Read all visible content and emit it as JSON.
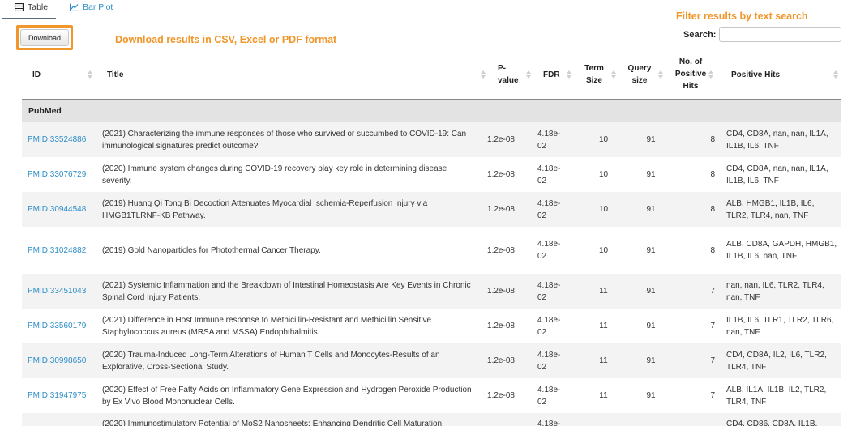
{
  "tabs": {
    "table_label": "Table",
    "bar_plot_label": "Bar Plot"
  },
  "download": {
    "button_label": "Download",
    "annotation": "Download results in CSV, Excel or PDF format"
  },
  "filter": {
    "annotation": "Filter results by text search",
    "search_label": "Search:",
    "search_value": "",
    "search_placeholder": ""
  },
  "columns": {
    "id": "ID",
    "title": "Title",
    "pvalue": "P-value",
    "fdr": "FDR",
    "term_size": "Term Size",
    "query_size": "Query size",
    "num_positive_hits": "No. of Positive Hits",
    "positive_hits": "Positive Hits"
  },
  "group_label": "PubMed",
  "rows": [
    {
      "id": "PMID:33524886",
      "title": "(2021) Characterizing the immune responses of those who survived or succumbed to COVID-19: Can immunological signatures predict outcome?",
      "pvalue": "1.2e-08",
      "fdr": "4.18e-02",
      "term_size": "10",
      "query_size": "91",
      "num_positive_hits": "8",
      "positive_hits": "CD4, CD8A, nan, nan, IL1A, IL1B, IL6, TNF"
    },
    {
      "id": "PMID:33076729",
      "title": "(2020) Immune system changes during COVID-19 recovery play key role in determining disease severity.",
      "pvalue": "1.2e-08",
      "fdr": "4.18e-02",
      "term_size": "10",
      "query_size": "91",
      "num_positive_hits": "8",
      "positive_hits": "CD4, CD8A, nan, nan, IL1A, IL1B, IL6, TNF"
    },
    {
      "id": "PMID:30944548",
      "title": "(2019) Huang Qi Tong Bi Decoction Attenuates Myocardial Ischemia-Reperfusion Injury via HMGB1TLRNF-KB Pathway.",
      "pvalue": "1.2e-08",
      "fdr": "4.18e-02",
      "term_size": "10",
      "query_size": "91",
      "num_positive_hits": "8",
      "positive_hits": "ALB, HMGB1, IL1B, IL6, TLR2, TLR4, nan, TNF"
    },
    {
      "id": "PMID:31024882",
      "title": "(2019) Gold Nanoparticles for Photothermal Cancer Therapy.",
      "pvalue": "1.2e-08",
      "fdr": "4.18e-02",
      "term_size": "10",
      "query_size": "91",
      "num_positive_hits": "8",
      "positive_hits": "ALB, CD8A, GAPDH, HMGB1, IL1B, IL6, nan, TNF"
    },
    {
      "id": "PMID:33451043",
      "title": "(2021) Systemic Inflammation and the Breakdown of Intestinal Homeostasis Are Key Events in Chronic Spinal Cord Injury Patients.",
      "pvalue": "1.2e-08",
      "fdr": "4.18e-02",
      "term_size": "11",
      "query_size": "91",
      "num_positive_hits": "7",
      "positive_hits": "nan, nan, IL6, TLR2, TLR4, nan, TNF"
    },
    {
      "id": "PMID:33560179",
      "title": "(2021) Difference in Host Immune response to Methicillin-Resistant and Methicillin Sensitive Staphylococcus aureus (MRSA and MSSA) Endophthalmitis.",
      "pvalue": "1.2e-08",
      "fdr": "4.18e-02",
      "term_size": "11",
      "query_size": "91",
      "num_positive_hits": "7",
      "positive_hits": "IL1B, IL6, TLR1, TLR2, TLR6, nan, TNF"
    },
    {
      "id": "PMID:30998650",
      "title": "(2020) Trauma-Induced Long-Term Alterations of Human T Cells and Monocytes-Results of an Explorative, Cross-Sectional Study.",
      "pvalue": "1.2e-08",
      "fdr": "4.18e-02",
      "term_size": "11",
      "query_size": "91",
      "num_positive_hits": "7",
      "positive_hits": "CD4, CD8A, IL2, IL6, TLR2, TLR4, TNF"
    },
    {
      "id": "PMID:31947975",
      "title": "(2020) Effect of Free Fatty Acids on Inflammatory Gene Expression and Hydrogen Peroxide Production by Ex Vivo Blood Mononuclear Cells.",
      "pvalue": "1.2e-08",
      "fdr": "4.18e-02",
      "term_size": "11",
      "query_size": "91",
      "num_positive_hits": "7",
      "positive_hits": "ALB, IL1A, IL1B, IL2, TLR2, TLR4, TNF"
    },
    {
      "id": "",
      "title": "(2020) Immunostimulatory Potential of MoS2 Nanosheets: Enhancing Dendritic Cell Maturation",
      "pvalue": "",
      "fdr": "4.18e-",
      "term_size": "",
      "query_size": "",
      "num_positive_hits": "",
      "positive_hits": "CD4, CD86, CD8A, IL1B,"
    }
  ]
}
